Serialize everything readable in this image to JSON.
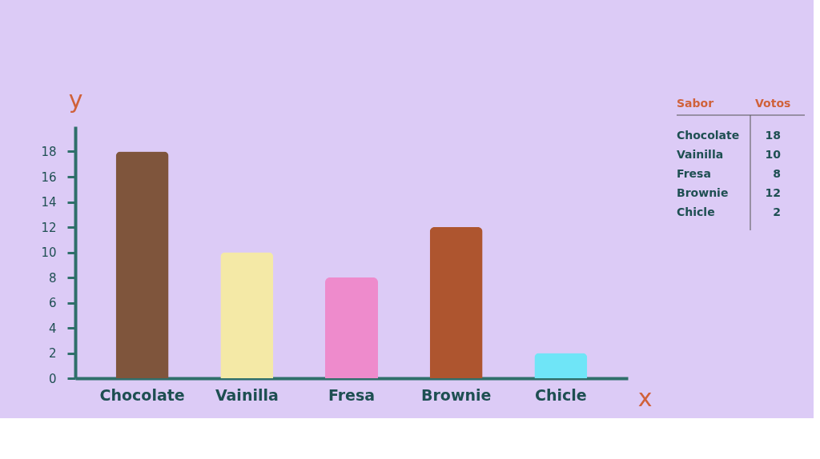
{
  "chart_data": [
    {
      "type": "bar",
      "categories": [
        "Chocolate",
        "Vainilla",
        "Fresa",
        "Brownie",
        "Chicle"
      ],
      "values": [
        18,
        10,
        8,
        12,
        2
      ],
      "colors": [
        "#7f553c",
        "#f4e9a6",
        "#ee8bcc",
        "#ae552f",
        "#6fe5f7"
      ],
      "xlabel": "x",
      "ylabel": "y",
      "ylim": [
        0,
        20
      ],
      "yticks": [
        0,
        2,
        4,
        6,
        8,
        10,
        12,
        14,
        16,
        18
      ],
      "grid": false
    },
    {
      "type": "other",
      "annotations": [
        "Sabor",
        "Votos",
        "Chocolate",
        "18",
        "Vainilla",
        "10",
        "Fresa",
        "8",
        "Brownie",
        "12",
        "Chicle",
        "2"
      ]
    }
  ]
}
